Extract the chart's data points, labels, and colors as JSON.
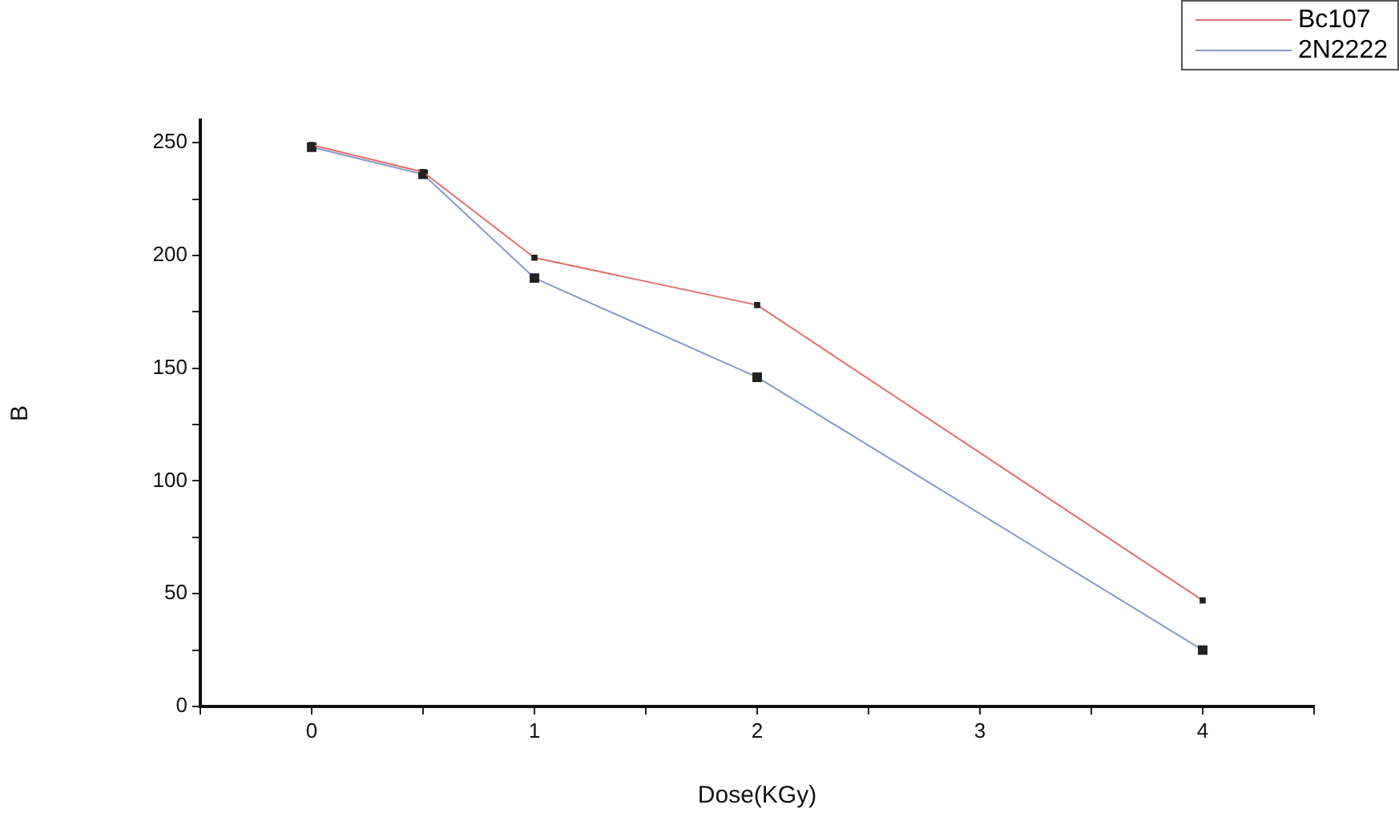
{
  "chart_data": {
    "type": "line",
    "xlabel": "Dose(KGy)",
    "ylabel": "B",
    "x": [
      0,
      0.5,
      1,
      2,
      4
    ],
    "series": [
      {
        "name": "Bc107",
        "color": "#e07070",
        "values": [
          249,
          237,
          199,
          178,
          47
        ]
      },
      {
        "name": "2N2222",
        "color": "#8898c8",
        "values": [
          248,
          236,
          190,
          146,
          25
        ]
      }
    ],
    "xlim": [
      -0.5,
      4.5
    ],
    "xticks": [
      {
        "value": -0.5,
        "label": null
      },
      0,
      {
        "value": 0.5,
        "label": null
      },
      1,
      {
        "value": 1.5,
        "label": null
      },
      2,
      {
        "value": 2.5,
        "label": null
      },
      3,
      {
        "value": 3.5,
        "label": null
      },
      4,
      {
        "value": 4.5,
        "label": null
      }
    ],
    "ylim": [
      0,
      260
    ],
    "yticks": [
      0,
      {
        "value": 25,
        "label": null
      },
      50,
      {
        "value": 75,
        "label": null
      },
      100,
      {
        "value": 125,
        "label": null
      },
      150,
      {
        "value": 175,
        "label": null
      },
      200,
      {
        "value": 225,
        "label": null
      },
      250
    ],
    "grid": false,
    "legend": "top right",
    "marker": "square",
    "line_style": "solid"
  }
}
